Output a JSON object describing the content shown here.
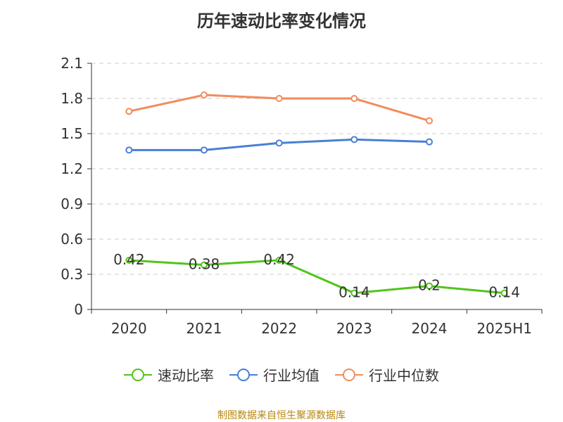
{
  "chart_data": {
    "type": "line",
    "title": "历年速动比率变化情况",
    "categories": [
      "2020",
      "2021",
      "2022",
      "2023",
      "2024",
      "2025H1"
    ],
    "ylim": [
      0,
      2.1
    ],
    "yticks": [
      "0",
      "0.3",
      "0.6",
      "0.9",
      "1.2",
      "1.5",
      "1.8",
      "2.1"
    ],
    "grid": true,
    "legend_position": "bottom",
    "series": [
      {
        "name": "速动比率",
        "color": "#52c41a",
        "values": [
          0.42,
          0.38,
          0.42,
          0.14,
          0.2,
          0.14
        ],
        "labels": [
          "0.42",
          "0.38",
          "0.42",
          "0.14",
          "0.2",
          "0.14"
        ]
      },
      {
        "name": "行业均值",
        "color": "#4a7fd4",
        "values": [
          1.36,
          1.36,
          1.42,
          1.45,
          1.43,
          null
        ]
      },
      {
        "name": "行业中位数",
        "color": "#f28c5c",
        "values": [
          1.69,
          1.83,
          1.8,
          1.8,
          1.61,
          null
        ]
      }
    ]
  },
  "source_text": "制图数据来自恒生聚源数据库"
}
